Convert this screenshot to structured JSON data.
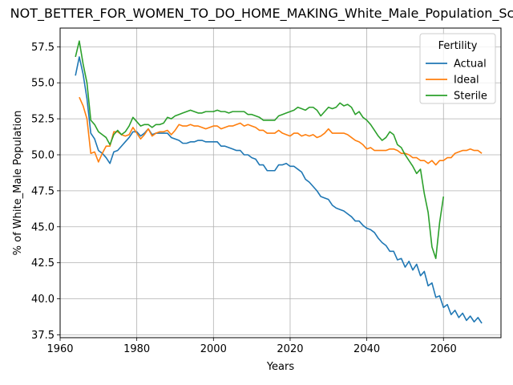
{
  "chart_data": {
    "type": "line",
    "title": "NOT_BETTER_FOR_WOMEN_TO_DO_HOME_MAKING_White_Male_Population_Sc",
    "xlabel": "Years",
    "ylabel": "% of White_Male Population",
    "xlim": [
      1960,
      2075
    ],
    "ylim": [
      37.3,
      58.8
    ],
    "xticks": [
      1960,
      1980,
      2000,
      2020,
      2040,
      2060
    ],
    "yticks": [
      37.5,
      40.0,
      42.5,
      45.0,
      47.5,
      50.0,
      52.5,
      55.0,
      57.5
    ],
    "ytick_labels": [
      "37.5",
      "40.0",
      "42.5",
      "45.0",
      "47.5",
      "50.0",
      "52.5",
      "55.0",
      "57.5"
    ],
    "grid": true,
    "legend": {
      "title": "Fertility",
      "position": "top-right"
    },
    "series": [
      {
        "name": "Actual",
        "color": "#1f77b4",
        "points": [
          [
            1964,
            55.5
          ],
          [
            1965,
            56.8
          ],
          [
            1966,
            55.6
          ],
          [
            1967,
            53.9
          ],
          [
            1968,
            51.5
          ],
          [
            1969,
            51.1
          ],
          [
            1970,
            50.3
          ],
          [
            1971,
            50.1
          ],
          [
            1972,
            49.8
          ],
          [
            1973,
            49.4
          ],
          [
            1974,
            50.2
          ],
          [
            1975,
            50.3
          ],
          [
            1976,
            50.6
          ],
          [
            1977,
            50.9
          ],
          [
            1978,
            51.2
          ],
          [
            1979,
            51.6
          ],
          [
            1980,
            51.6
          ],
          [
            1981,
            51.3
          ],
          [
            1982,
            51.5
          ],
          [
            1983,
            51.8
          ],
          [
            1984,
            51.4
          ],
          [
            1985,
            51.5
          ],
          [
            1986,
            51.5
          ],
          [
            1987,
            51.5
          ],
          [
            1988,
            51.5
          ],
          [
            1989,
            51.2
          ],
          [
            1990,
            51.1
          ],
          [
            1991,
            51.0
          ],
          [
            1992,
            50.8
          ],
          [
            1993,
            50.8
          ],
          [
            1994,
            50.9
          ],
          [
            1995,
            50.9
          ],
          [
            1996,
            51.0
          ],
          [
            1997,
            51.0
          ],
          [
            1998,
            50.9
          ],
          [
            1999,
            50.9
          ],
          [
            2000,
            50.9
          ],
          [
            2001,
            50.9
          ],
          [
            2002,
            50.6
          ],
          [
            2003,
            50.6
          ],
          [
            2004,
            50.5
          ],
          [
            2005,
            50.4
          ],
          [
            2006,
            50.3
          ],
          [
            2007,
            50.3
          ],
          [
            2008,
            50.0
          ],
          [
            2009,
            50.0
          ],
          [
            2010,
            49.8
          ],
          [
            2011,
            49.7
          ],
          [
            2012,
            49.3
          ],
          [
            2013,
            49.3
          ],
          [
            2014,
            48.9
          ],
          [
            2015,
            48.9
          ],
          [
            2016,
            48.9
          ],
          [
            2017,
            49.3
          ],
          [
            2018,
            49.3
          ],
          [
            2019,
            49.4
          ],
          [
            2020,
            49.2
          ],
          [
            2021,
            49.2
          ],
          [
            2022,
            49.0
          ],
          [
            2023,
            48.8
          ],
          [
            2024,
            48.3
          ],
          [
            2025,
            48.1
          ],
          [
            2026,
            47.8
          ],
          [
            2027,
            47.5
          ],
          [
            2028,
            47.1
          ],
          [
            2029,
            47.0
          ],
          [
            2030,
            46.9
          ],
          [
            2031,
            46.5
          ],
          [
            2032,
            46.3
          ],
          [
            2033,
            46.2
          ],
          [
            2034,
            46.1
          ],
          [
            2035,
            45.9
          ],
          [
            2036,
            45.7
          ],
          [
            2037,
            45.4
          ],
          [
            2038,
            45.4
          ],
          [
            2039,
            45.1
          ],
          [
            2040,
            44.9
          ],
          [
            2041,
            44.8
          ],
          [
            2042,
            44.6
          ],
          [
            2043,
            44.2
          ],
          [
            2044,
            43.9
          ],
          [
            2045,
            43.7
          ],
          [
            2046,
            43.3
          ],
          [
            2047,
            43.3
          ],
          [
            2048,
            42.7
          ],
          [
            2049,
            42.8
          ],
          [
            2050,
            42.2
          ],
          [
            2051,
            42.6
          ],
          [
            2052,
            42.0
          ],
          [
            2053,
            42.4
          ],
          [
            2054,
            41.6
          ],
          [
            2055,
            41.9
          ],
          [
            2056,
            40.9
          ],
          [
            2057,
            41.1
          ],
          [
            2058,
            40.1
          ],
          [
            2059,
            40.2
          ],
          [
            2060,
            39.4
          ],
          [
            2061,
            39.6
          ],
          [
            2062,
            38.9
          ],
          [
            2063,
            39.2
          ],
          [
            2064,
            38.7
          ],
          [
            2065,
            39.0
          ],
          [
            2066,
            38.5
          ],
          [
            2067,
            38.8
          ],
          [
            2068,
            38.4
          ],
          [
            2069,
            38.7
          ],
          [
            2070,
            38.3
          ]
        ]
      },
      {
        "name": "Ideal",
        "color": "#ff7f0e",
        "points": [
          [
            1965,
            54.0
          ],
          [
            1966,
            53.4
          ],
          [
            1967,
            52.5
          ],
          [
            1968,
            50.1
          ],
          [
            1969,
            50.2
          ],
          [
            1970,
            49.5
          ],
          [
            1971,
            50.1
          ],
          [
            1972,
            50.6
          ],
          [
            1973,
            50.6
          ],
          [
            1974,
            51.6
          ],
          [
            1975,
            51.6
          ],
          [
            1976,
            51.4
          ],
          [
            1977,
            51.3
          ],
          [
            1978,
            51.4
          ],
          [
            1979,
            51.9
          ],
          [
            1980,
            51.5
          ],
          [
            1981,
            51.1
          ],
          [
            1982,
            51.4
          ],
          [
            1983,
            51.8
          ],
          [
            1984,
            51.3
          ],
          [
            1985,
            51.5
          ],
          [
            1986,
            51.6
          ],
          [
            1987,
            51.6
          ],
          [
            1988,
            51.7
          ],
          [
            1989,
            51.4
          ],
          [
            1990,
            51.7
          ],
          [
            1991,
            52.1
          ],
          [
            1992,
            52.0
          ],
          [
            1993,
            52.0
          ],
          [
            1994,
            52.1
          ],
          [
            1995,
            52.0
          ],
          [
            1996,
            52.0
          ],
          [
            1997,
            51.9
          ],
          [
            1998,
            51.8
          ],
          [
            1999,
            51.9
          ],
          [
            2000,
            52.0
          ],
          [
            2001,
            52.0
          ],
          [
            2002,
            51.8
          ],
          [
            2003,
            51.9
          ],
          [
            2004,
            52.0
          ],
          [
            2005,
            52.0
          ],
          [
            2006,
            52.1
          ],
          [
            2007,
            52.2
          ],
          [
            2008,
            52.0
          ],
          [
            2009,
            52.1
          ],
          [
            2010,
            52.0
          ],
          [
            2011,
            51.9
          ],
          [
            2012,
            51.7
          ],
          [
            2013,
            51.7
          ],
          [
            2014,
            51.5
          ],
          [
            2015,
            51.5
          ],
          [
            2016,
            51.5
          ],
          [
            2017,
            51.7
          ],
          [
            2018,
            51.5
          ],
          [
            2019,
            51.4
          ],
          [
            2020,
            51.3
          ],
          [
            2021,
            51.5
          ],
          [
            2022,
            51.5
          ],
          [
            2023,
            51.3
          ],
          [
            2024,
            51.4
          ],
          [
            2025,
            51.3
          ],
          [
            2026,
            51.4
          ],
          [
            2027,
            51.2
          ],
          [
            2028,
            51.3
          ],
          [
            2029,
            51.5
          ],
          [
            2030,
            51.8
          ],
          [
            2031,
            51.5
          ],
          [
            2032,
            51.5
          ],
          [
            2033,
            51.5
          ],
          [
            2034,
            51.5
          ],
          [
            2035,
            51.4
          ],
          [
            2036,
            51.2
          ],
          [
            2037,
            51.0
          ],
          [
            2038,
            50.9
          ],
          [
            2039,
            50.7
          ],
          [
            2040,
            50.4
          ],
          [
            2041,
            50.5
          ],
          [
            2042,
            50.3
          ],
          [
            2043,
            50.3
          ],
          [
            2044,
            50.3
          ],
          [
            2045,
            50.3
          ],
          [
            2046,
            50.4
          ],
          [
            2047,
            50.4
          ],
          [
            2048,
            50.3
          ],
          [
            2049,
            50.1
          ],
          [
            2050,
            50.1
          ],
          [
            2051,
            50.0
          ],
          [
            2052,
            49.8
          ],
          [
            2053,
            49.8
          ],
          [
            2054,
            49.6
          ],
          [
            2055,
            49.6
          ],
          [
            2056,
            49.4
          ],
          [
            2057,
            49.6
          ],
          [
            2058,
            49.3
          ],
          [
            2059,
            49.6
          ],
          [
            2060,
            49.6
          ],
          [
            2061,
            49.8
          ],
          [
            2062,
            49.8
          ],
          [
            2063,
            50.1
          ],
          [
            2064,
            50.2
          ],
          [
            2065,
            50.3
          ],
          [
            2066,
            50.3
          ],
          [
            2067,
            50.4
          ],
          [
            2068,
            50.3
          ],
          [
            2069,
            50.3
          ],
          [
            2070,
            50.1
          ]
        ]
      },
      {
        "name": "Sterile",
        "color": "#2ca02c",
        "points": [
          [
            1964,
            56.8
          ],
          [
            1965,
            57.9
          ],
          [
            1966,
            56.3
          ],
          [
            1967,
            55.0
          ],
          [
            1968,
            52.4
          ],
          [
            1969,
            52.1
          ],
          [
            1970,
            51.6
          ],
          [
            1971,
            51.4
          ],
          [
            1972,
            51.2
          ],
          [
            1973,
            50.7
          ],
          [
            1974,
            51.4
          ],
          [
            1975,
            51.7
          ],
          [
            1976,
            51.4
          ],
          [
            1977,
            51.6
          ],
          [
            1978,
            52.0
          ],
          [
            1979,
            52.6
          ],
          [
            1980,
            52.3
          ],
          [
            1981,
            52.0
          ],
          [
            1982,
            52.1
          ],
          [
            1983,
            52.1
          ],
          [
            1984,
            51.9
          ],
          [
            1985,
            52.1
          ],
          [
            1986,
            52.1
          ],
          [
            1987,
            52.2
          ],
          [
            1988,
            52.6
          ],
          [
            1989,
            52.5
          ],
          [
            1990,
            52.7
          ],
          [
            1991,
            52.8
          ],
          [
            1992,
            52.9
          ],
          [
            1993,
            53.0
          ],
          [
            1994,
            53.1
          ],
          [
            1995,
            53.0
          ],
          [
            1996,
            52.9
          ],
          [
            1997,
            52.9
          ],
          [
            1998,
            53.0
          ],
          [
            1999,
            53.0
          ],
          [
            2000,
            53.0
          ],
          [
            2001,
            53.1
          ],
          [
            2002,
            53.0
          ],
          [
            2003,
            53.0
          ],
          [
            2004,
            52.9
          ],
          [
            2005,
            53.0
          ],
          [
            2006,
            53.0
          ],
          [
            2007,
            53.0
          ],
          [
            2008,
            53.0
          ],
          [
            2009,
            52.8
          ],
          [
            2010,
            52.8
          ],
          [
            2011,
            52.7
          ],
          [
            2012,
            52.6
          ],
          [
            2013,
            52.4
          ],
          [
            2014,
            52.4
          ],
          [
            2015,
            52.4
          ],
          [
            2016,
            52.4
          ],
          [
            2017,
            52.7
          ],
          [
            2018,
            52.8
          ],
          [
            2019,
            52.9
          ],
          [
            2020,
            53.0
          ],
          [
            2021,
            53.1
          ],
          [
            2022,
            53.3
          ],
          [
            2023,
            53.2
          ],
          [
            2024,
            53.1
          ],
          [
            2025,
            53.3
          ],
          [
            2026,
            53.3
          ],
          [
            2027,
            53.1
          ],
          [
            2028,
            52.7
          ],
          [
            2029,
            53.0
          ],
          [
            2030,
            53.3
          ],
          [
            2031,
            53.2
          ],
          [
            2032,
            53.3
          ],
          [
            2033,
            53.6
          ],
          [
            2034,
            53.4
          ],
          [
            2035,
            53.5
          ],
          [
            2036,
            53.3
          ],
          [
            2037,
            52.8
          ],
          [
            2038,
            53.0
          ],
          [
            2039,
            52.6
          ],
          [
            2040,
            52.4
          ],
          [
            2041,
            52.1
          ],
          [
            2042,
            51.7
          ],
          [
            2043,
            51.3
          ],
          [
            2044,
            51.0
          ],
          [
            2045,
            51.2
          ],
          [
            2046,
            51.6
          ],
          [
            2047,
            51.4
          ],
          [
            2048,
            50.7
          ],
          [
            2049,
            50.5
          ],
          [
            2050,
            50.0
          ],
          [
            2051,
            49.6
          ],
          [
            2052,
            49.2
          ],
          [
            2053,
            48.7
          ],
          [
            2054,
            49.0
          ],
          [
            2055,
            47.3
          ],
          [
            2056,
            46.0
          ],
          [
            2057,
            43.6
          ],
          [
            2058,
            42.8
          ],
          [
            2059,
            45.3
          ],
          [
            2060,
            47.1
          ]
        ]
      }
    ]
  }
}
